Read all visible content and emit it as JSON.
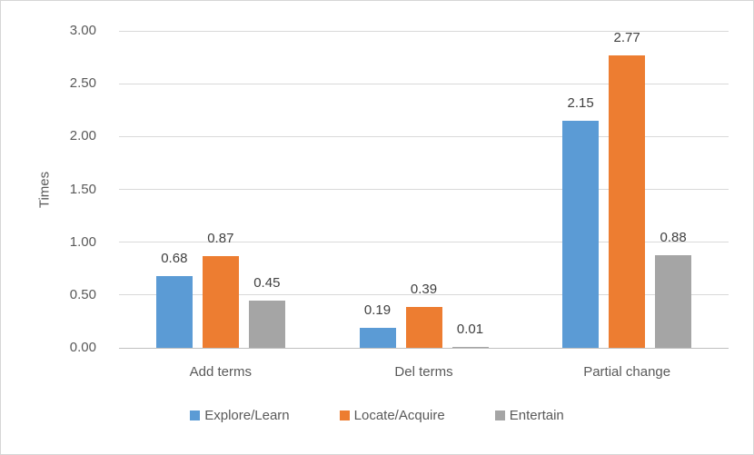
{
  "chart_data": {
    "type": "bar",
    "title": "",
    "xlabel": "",
    "ylabel": "Times",
    "categories": [
      "Add terms",
      "Del terms",
      "Partial change"
    ],
    "series": [
      {
        "name": "Explore/Learn",
        "color": "#5B9BD5",
        "values": [
          0.68,
          0.19,
          2.15
        ]
      },
      {
        "name": "Locate/Acquire",
        "color": "#ED7D31",
        "values": [
          0.87,
          0.39,
          2.77
        ]
      },
      {
        "name": "Entertain",
        "color": "#A5A5A5",
        "values": [
          0.45,
          0.01,
          0.88
        ]
      }
    ],
    "ylim": [
      0,
      3
    ],
    "yticks": [
      "0.00",
      "0.50",
      "1.00",
      "1.50",
      "2.00",
      "2.50",
      "3.00"
    ],
    "grid": true,
    "legend_position": "bottom",
    "value_label_decimals": 2
  },
  "style": {
    "axis_text_color": "#595959",
    "value_label_color": "#404040",
    "gridline_color": "#D9D9D9",
    "axis_line_color": "#BFBFBF",
    "border_color": "#D6D6D6",
    "background": "#FFFFFF"
  }
}
